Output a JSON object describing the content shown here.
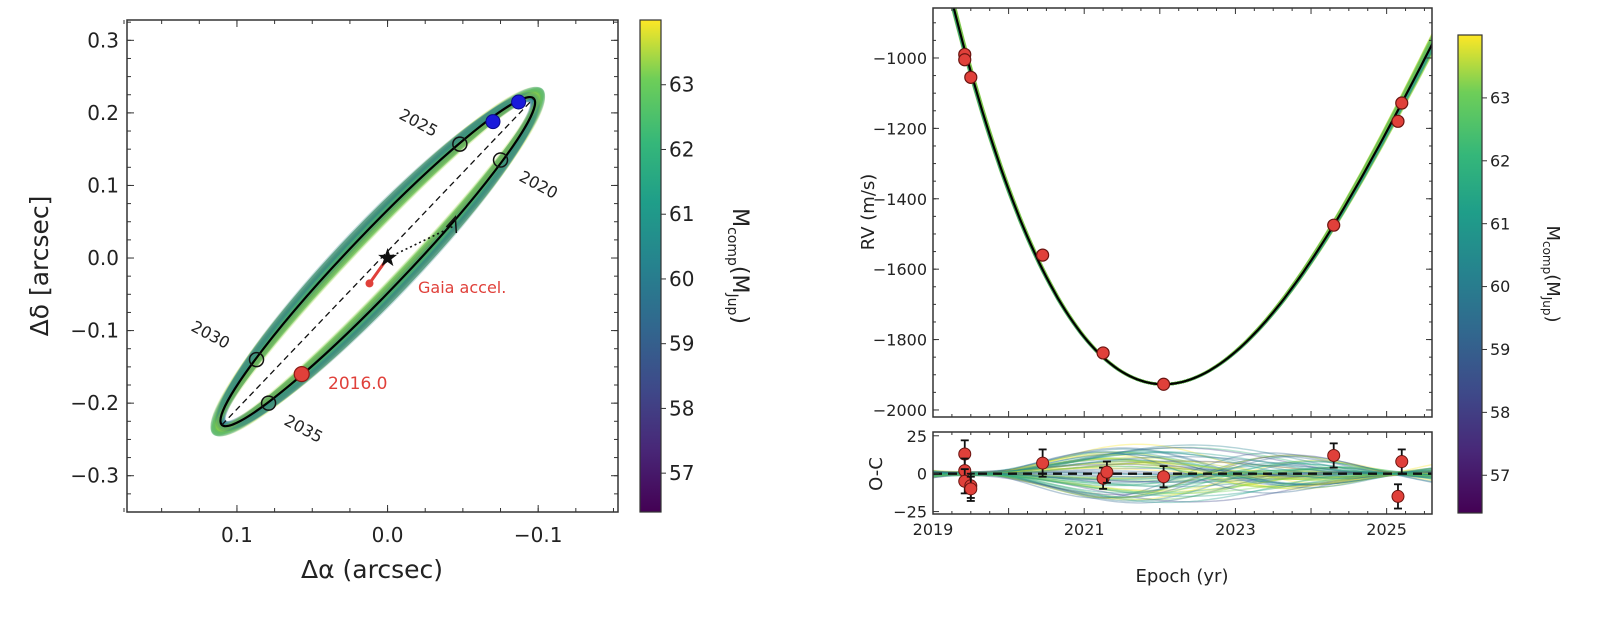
{
  "chart_data": [
    {
      "type": "scatter",
      "xlabel": "Δα (arcsec)",
      "ylabel": "Δδ [arcsec]",
      "xlim": [
        0.173,
        -0.153
      ],
      "ylim": [
        -0.35,
        0.328
      ],
      "xticks": [
        0.1,
        0.0,
        -0.1
      ],
      "xtick_labels": [
        "0.1",
        "0.0",
        "−0.1"
      ],
      "yticks": [
        0.3,
        0.2,
        0.1,
        0.0,
        -0.1,
        -0.2,
        -0.3
      ],
      "ytick_labels": [
        "0.3",
        "0.2",
        "0.1",
        "0.0",
        "−0.1",
        "−0.2",
        "−0.3"
      ],
      "grid": false,
      "orbit_tips": [
        [
          0.11,
          -0.23
        ],
        [
          -0.097,
          0.22
        ]
      ],
      "epoch_markers": [
        {
          "label": "2020",
          "x": -0.075,
          "y": 0.135
        },
        {
          "label": "2025",
          "x": -0.048,
          "y": 0.157
        },
        {
          "label": "2030",
          "x": 0.087,
          "y": -0.14
        },
        {
          "label": "2035",
          "x": 0.079,
          "y": -0.2
        }
      ],
      "observed_points": [
        {
          "x": -0.087,
          "y": 0.215,
          "color": "#1a1adb"
        },
        {
          "x": -0.07,
          "y": 0.188,
          "color": "#1a1adb"
        }
      ],
      "reference_point": {
        "label": "2016.0",
        "x": 0.057,
        "y": -0.16,
        "color": "#e0403a"
      },
      "host_star": {
        "x": 0.0,
        "y": 0.0
      },
      "gaia_accel": {
        "label": "Gaia accel.",
        "x": 0.012,
        "y": -0.035,
        "color": "#e0403a"
      },
      "colorbar": {
        "label_main": "M",
        "label_sub": "comp",
        "label_paren": "(M",
        "label_sub2": "Jup",
        "label_end": ")",
        "range": [
          56.4,
          64.0
        ],
        "ticks": [
          57,
          58,
          59,
          60,
          61,
          62,
          63
        ],
        "tick_labels": [
          "57",
          "58",
          "59",
          "60",
          "61",
          "62",
          "63"
        ],
        "colormap": "viridis"
      }
    },
    {
      "type": "scatter",
      "ylabel": "RV (m/s)",
      "xlim": [
        2019.0,
        2025.6
      ],
      "ylim": [
        -2020,
        -858
      ],
      "yticks": [
        -1000,
        -1200,
        -1400,
        -1600,
        -1800,
        -2000
      ],
      "ytick_labels": [
        "−1000",
        "−1200",
        "−1400",
        "−1600",
        "−1800",
        "−2000"
      ],
      "points": [
        {
          "x": 2019.42,
          "y": -990
        },
        {
          "x": 2019.42,
          "y": -1005
        },
        {
          "x": 2019.5,
          "y": -1055
        },
        {
          "x": 2020.45,
          "y": -1560
        },
        {
          "x": 2021.25,
          "y": -1838
        },
        {
          "x": 2022.05,
          "y": -1927
        },
        {
          "x": 2024.3,
          "y": -1475
        },
        {
          "x": 2025.15,
          "y": -1180
        },
        {
          "x": 2025.2,
          "y": -1128
        }
      ],
      "point_color": "#e0403a",
      "model_color": "#000000"
    },
    {
      "type": "scatter",
      "xlabel": "Epoch (yr)",
      "ylabel": "O-C",
      "xlim": [
        2019.0,
        2025.6
      ],
      "ylim": [
        -26.6,
        27.5
      ],
      "xticks": [
        2019,
        2021,
        2023,
        2025
      ],
      "xtick_labels": [
        "2019",
        "2021",
        "2023",
        "2025"
      ],
      "yticks": [
        25,
        0,
        -25
      ],
      "ytick_labels": [
        "25",
        "0",
        "−25"
      ],
      "points": [
        {
          "x": 2019.42,
          "y": 13,
          "err": 9
        },
        {
          "x": 2019.42,
          "y": 2,
          "err": 8
        },
        {
          "x": 2019.42,
          "y": -5,
          "err": 8
        },
        {
          "x": 2019.5,
          "y": -8,
          "err": 8
        },
        {
          "x": 2019.5,
          "y": -10,
          "err": 8
        },
        {
          "x": 2020.45,
          "y": 7,
          "err": 9
        },
        {
          "x": 2021.25,
          "y": -3,
          "err": 7
        },
        {
          "x": 2021.3,
          "y": 1,
          "err": 7
        },
        {
          "x": 2022.05,
          "y": -2,
          "err": 7
        },
        {
          "x": 2024.3,
          "y": 12,
          "err": 8
        },
        {
          "x": 2025.15,
          "y": -15,
          "err": 8
        },
        {
          "x": 2025.2,
          "y": 8,
          "err": 8
        }
      ],
      "zero_line": 0,
      "colorbar": {
        "label_main": "M",
        "label_sub": "comp",
        "label_paren": "(M",
        "label_sub2": "Jup",
        "label_end": ")",
        "range": [
          56.4,
          64.0
        ],
        "ticks": [
          57,
          58,
          59,
          60,
          61,
          62,
          63
        ],
        "tick_labels": [
          "57",
          "58",
          "59",
          "60",
          "61",
          "62",
          "63"
        ],
        "colormap": "viridis"
      }
    }
  ]
}
